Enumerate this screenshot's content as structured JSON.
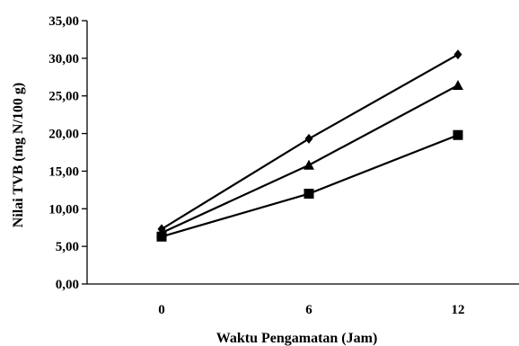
{
  "chart_data": {
    "type": "line",
    "xlabel": "Waktu Pengamatan (Jam)",
    "ylabel": "Nilai TVB (mg N/100 g)",
    "categories": [
      "0",
      "6",
      "12"
    ],
    "ylim": [
      0,
      35
    ],
    "yticks": [
      "0,00",
      "5,00",
      "10,00",
      "15,00",
      "20,00",
      "25,00",
      "30,00",
      "35,00"
    ],
    "grid": false,
    "legend": "none",
    "series": [
      {
        "marker": "diamond",
        "values": [
          7.3,
          19.3,
          30.5
        ]
      },
      {
        "marker": "triangle",
        "values": [
          6.8,
          15.8,
          26.4
        ]
      },
      {
        "marker": "square",
        "values": [
          6.3,
          12.0,
          19.8
        ]
      }
    ]
  }
}
